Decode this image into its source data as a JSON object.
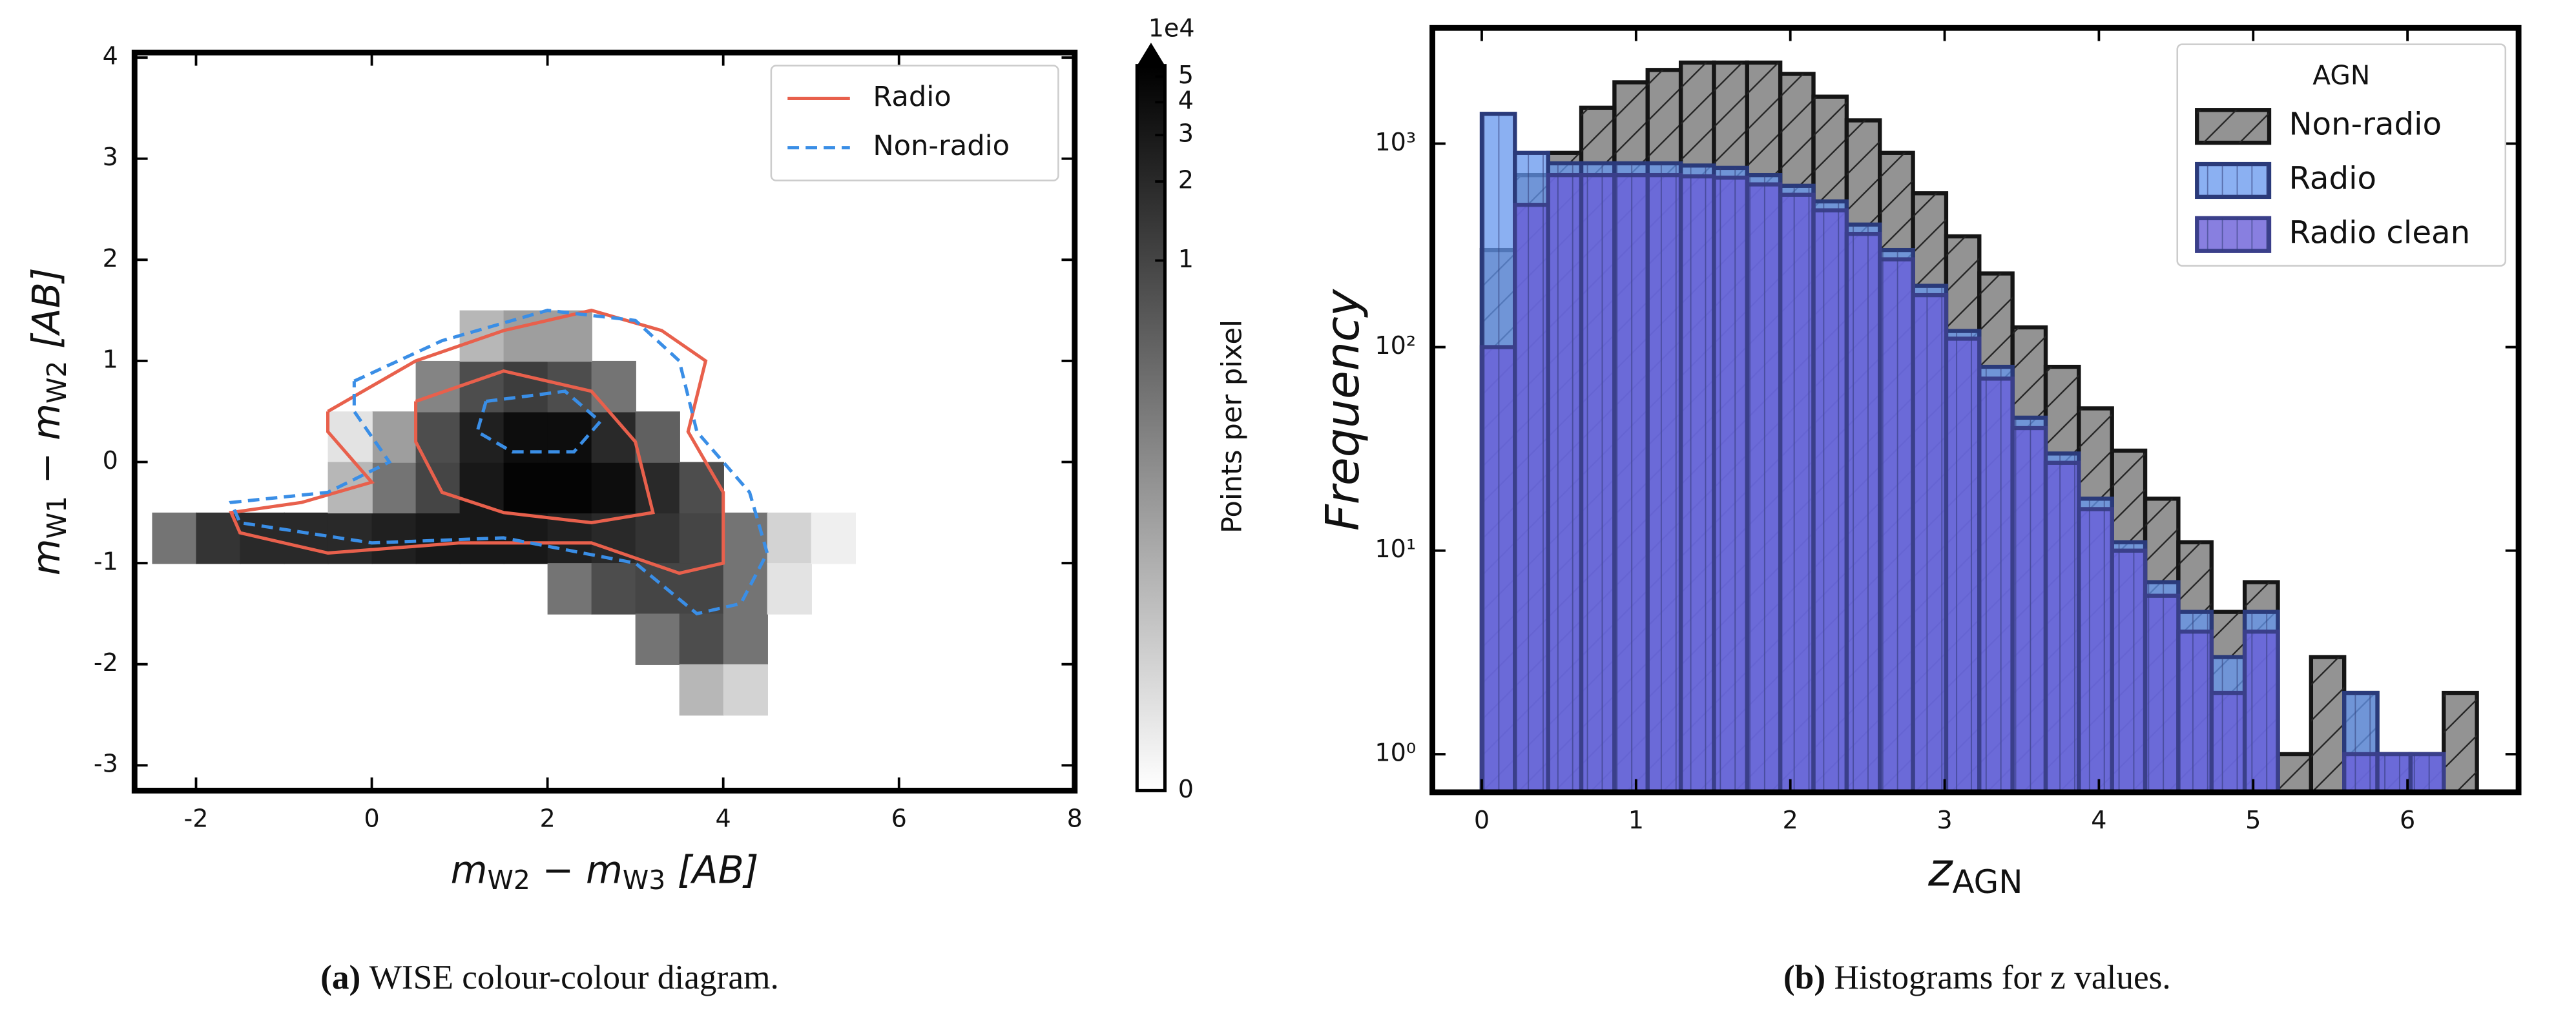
{
  "chart_data": [
    {
      "type": "heatmap",
      "caption_label": "(a)",
      "caption": "WISE colour-colour diagram.",
      "xlabel": [
        "m",
        "W2",
        " − m",
        "W3",
        " [AB]"
      ],
      "ylabel": [
        "m",
        "W1",
        " − m",
        "W2",
        " [AB]"
      ],
      "xlim": [
        -2.7,
        8
      ],
      "ylim": [
        -3.25,
        4.05
      ],
      "xticks": [
        -2,
        0,
        2,
        4,
        6,
        8
      ],
      "yticks": [
        -3,
        -2,
        -1,
        0,
        1,
        2,
        3,
        4
      ],
      "x": [
        -2.25,
        -1.75,
        -1.25,
        -0.75,
        -0.25,
        0.25,
        0.75,
        1.25,
        1.75,
        2.25,
        2.75,
        3.25,
        3.75,
        4.25,
        0.25,
        0.75,
        1.25,
        1.75,
        2.25,
        2.75,
        3.25,
        3.75,
        0.25,
        0.75,
        1.25,
        1.75,
        2.25,
        2.75,
        3.25,
        0.75,
        1.25,
        1.75,
        2.25,
        2.75,
        1.25,
        1.75,
        2.25,
        2.25,
        2.75,
        3.25,
        3.75,
        4.25,
        3.25,
        3.75,
        4.25,
        3.75,
        4.25,
        -0.25,
        -0.25,
        4.75,
        4.75,
        5.25
      ],
      "y": [
        -0.75,
        -0.75,
        -0.75,
        -0.75,
        -0.75,
        -0.75,
        -0.75,
        -0.75,
        -0.75,
        -0.75,
        -0.75,
        -0.75,
        -0.75,
        -0.75,
        -0.25,
        -0.25,
        -0.25,
        -0.25,
        -0.25,
        -0.25,
        -0.25,
        -0.25,
        0.25,
        0.25,
        0.25,
        0.25,
        0.25,
        0.25,
        0.25,
        0.75,
        0.75,
        0.75,
        0.75,
        0.75,
        1.25,
        1.25,
        1.25,
        -1.25,
        -1.25,
        -1.25,
        -1.25,
        -1.25,
        -1.75,
        -1.75,
        -1.75,
        -2.25,
        -2.25,
        0.25,
        -0.25,
        -0.75,
        -1.25,
        -0.75
      ],
      "values": [
        0.3,
        1.5,
        2,
        2,
        2,
        2.5,
        3,
        3,
        3,
        2.5,
        2,
        1.5,
        1,
        0.3,
        0.3,
        1,
        3,
        5,
        5,
        4,
        2,
        0.8,
        0.1,
        0.8,
        2.5,
        4,
        4,
        2,
        0.5,
        0.2,
        0.8,
        1.2,
        0.8,
        0.3,
        0.05,
        0.1,
        0.1,
        0.3,
        0.8,
        1,
        1,
        0.3,
        0.3,
        0.8,
        0.3,
        0.05,
        0.02,
        0.01,
        0.05,
        0.02,
        0.01,
        0.005
      ],
      "colorbar": {
        "label": "Points per pixel",
        "offset_label": "1e4",
        "ticks": [
          0,
          1,
          2,
          3,
          4,
          5
        ],
        "lim": [
          0,
          5.5
        ],
        "scale": "symlog",
        "linthresh": 0.01,
        "extend": "max"
      },
      "legend": "upper right",
      "series": [
        {
          "name": "Radio",
          "color": "#e8604c",
          "dash": "solid",
          "x": [
            -0.5,
            0.5,
            1.5,
            2.5,
            3.3,
            3.8,
            3.6,
            4.0,
            4.0,
            3.5,
            2.5,
            1.0,
            -0.5,
            -1.5,
            -1.6,
            -0.8,
            0,
            -0.5,
            -0.5,
            null,
            0.5,
            1.5,
            2.5,
            3.0,
            3.2,
            2.5,
            1.5,
            0.8,
            0.5,
            0.5
          ],
          "y": [
            0.5,
            1.0,
            1.3,
            1.5,
            1.3,
            1.0,
            0.3,
            -0.3,
            -1.0,
            -1.1,
            -0.8,
            -0.8,
            -0.9,
            -0.7,
            -0.5,
            -0.4,
            -0.2,
            0.3,
            0.5,
            null,
            0.6,
            0.9,
            0.7,
            0.2,
            -0.5,
            -0.6,
            -0.5,
            -0.3,
            0.2,
            0.6
          ]
        },
        {
          "name": "Non-radio",
          "color": "#3a8ee6",
          "dash": "dashed",
          "x": [
            -0.2,
            0.8,
            2,
            3,
            3.5,
            3.7,
            4.3,
            4.5,
            4.2,
            3.7,
            3.0,
            1.5,
            0,
            -1.5,
            -1.6,
            -0.5,
            0.2,
            -0.2,
            -0.2,
            null,
            1.3,
            2.2,
            2.6,
            2.3,
            1.6,
            1.2,
            1.3
          ],
          "y": [
            0.8,
            1.2,
            1.5,
            1.4,
            1.0,
            0.3,
            -0.3,
            -0.9,
            -1.4,
            -1.5,
            -1.0,
            -0.75,
            -0.8,
            -0.6,
            -0.4,
            -0.3,
            0,
            0.5,
            0.8,
            null,
            0.6,
            0.7,
            0.4,
            0.1,
            0.1,
            0.3,
            0.6
          ]
        }
      ]
    },
    {
      "type": "histogram",
      "caption_label": "(b)",
      "caption": "Histograms for z values.",
      "xlabel": [
        "z",
        "AGN"
      ],
      "ylabel": [
        "Frequency"
      ],
      "xlim": [
        -0.32,
        6.72
      ],
      "ylim": [
        0.65,
        3700
      ],
      "yscale": "log",
      "xticks": [
        0,
        1,
        2,
        3,
        4,
        5,
        6
      ],
      "yticks": [
        {
          "value": 1,
          "label": "10⁰"
        },
        {
          "value": 10,
          "label": "10¹"
        },
        {
          "value": 100,
          "label": "10²"
        },
        {
          "value": 1000,
          "label": "10³"
        }
      ],
      "bins": [
        0,
        0.215,
        0.43,
        0.645,
        0.86,
        1.075,
        1.29,
        1.505,
        1.72,
        1.935,
        2.15,
        2.365,
        2.58,
        2.795,
        3.01,
        3.225,
        3.44,
        3.655,
        3.87,
        4.085,
        4.3,
        4.515,
        4.73,
        4.945,
        5.16,
        5.375,
        5.59,
        5.805,
        6.02,
        6.235,
        6.45
      ],
      "legend": "upper right",
      "legend_title": "AGN",
      "series": [
        {
          "name": "Non-radio",
          "color": "#808080",
          "edgecolor": "#151515",
          "alpha": 0.85,
          "hatch": "/",
          "values": [
            300,
            700,
            900,
            1500,
            2000,
            2300,
            2500,
            2500,
            2500,
            2200,
            1700,
            1300,
            900,
            570,
            350,
            230,
            125,
            80,
            50,
            31,
            18,
            11,
            5,
            7,
            1,
            3,
            2,
            1,
            1,
            2
          ]
        },
        {
          "name": "Radio",
          "color": "#6495ed",
          "edgecolor": "#2a3a7a",
          "alpha": 0.75,
          "hatch": "|",
          "values": [
            1400,
            900,
            800,
            800,
            800,
            800,
            780,
            760,
            700,
            620,
            520,
            400,
            300,
            200,
            120,
            80,
            45,
            30,
            18,
            11,
            7,
            5,
            3,
            5,
            0,
            0,
            2,
            1,
            1,
            0
          ]
        },
        {
          "name": "Radio clean",
          "color": "#6a5fd8",
          "edgecolor": "#3a3f8a",
          "alpha": 0.8,
          "hatch": "|",
          "values": [
            100,
            500,
            700,
            700,
            700,
            700,
            690,
            680,
            630,
            560,
            470,
            360,
            270,
            180,
            110,
            70,
            40,
            27,
            16,
            10,
            6,
            4,
            2,
            4,
            0,
            0,
            1,
            1,
            1,
            0
          ]
        }
      ]
    }
  ]
}
